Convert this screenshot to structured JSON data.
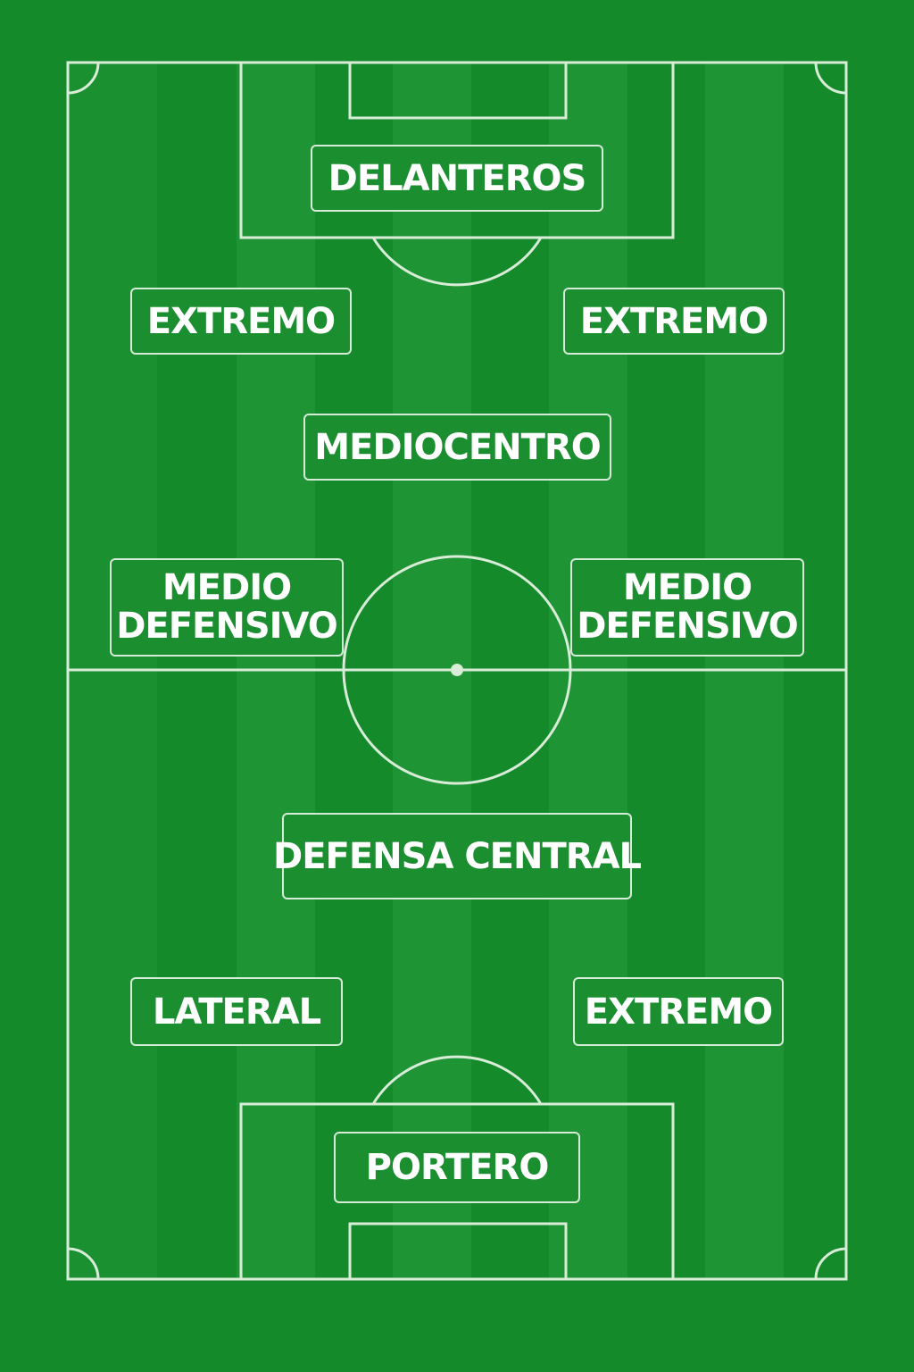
{
  "colors": {
    "grass_dark": "#148a2a",
    "grass_light": "#1f9535",
    "lines": "#d8ecd8",
    "text": "#ffffff"
  },
  "positions": {
    "delanteros": "DELANTEROS",
    "extremo_left": "EXTREMO",
    "extremo_right": "EXTREMO",
    "mediocentro": "MEDIOCENTRO",
    "medio_defensivo_left": "MEDIO\nDEFENSIVO",
    "medio_defensivo_right": "MEDIO\nDEFENSIVO",
    "defensa_central": "DEFENSA CENTRAL",
    "lateral": "LATERAL",
    "extremo_bottom_right": "EXTREMO",
    "portero": "PORTERO"
  }
}
